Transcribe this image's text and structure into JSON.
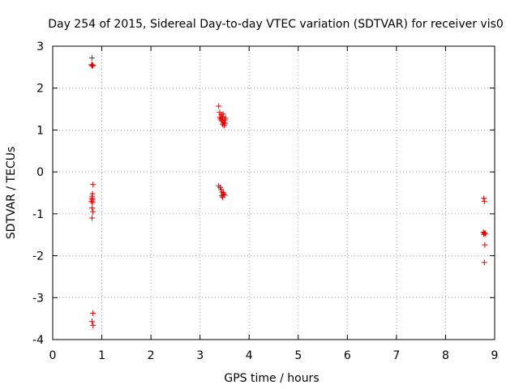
{
  "chart_data": {
    "type": "scatter",
    "title": "Day 254 of 2015, Sidereal Day-to-day VTEC variation (SDTVAR) for receiver vis0",
    "xlabel": "GPS time / hours",
    "ylabel": "SDTVAR / TECUs",
    "xlim": [
      0,
      9
    ],
    "ylim": [
      -4,
      3
    ],
    "xticks": [
      "0",
      "1",
      "2",
      "3",
      "4",
      "5",
      "6",
      "7",
      "8",
      "9"
    ],
    "yticks": [
      "3",
      "2",
      "1",
      "0",
      "-1",
      "-2",
      "-3",
      "-4"
    ],
    "marker": "+",
    "color": "#e00000",
    "grid": true,
    "points": [
      [
        0.8,
        2.72
      ],
      [
        0.79,
        2.56
      ],
      [
        0.8,
        2.54
      ],
      [
        0.81,
        2.53
      ],
      [
        0.82,
        2.55
      ],
      [
        0.82,
        -0.3
      ],
      [
        0.81,
        -0.52
      ],
      [
        0.8,
        -0.58
      ],
      [
        0.8,
        -0.63
      ],
      [
        0.81,
        -0.66
      ],
      [
        0.79,
        -0.7
      ],
      [
        0.81,
        -0.73
      ],
      [
        0.8,
        -0.86
      ],
      [
        0.82,
        -0.95
      ],
      [
        0.8,
        -1.1
      ],
      [
        0.82,
        -3.37
      ],
      [
        0.8,
        -3.57
      ],
      [
        0.82,
        -3.66
      ],
      [
        3.38,
        1.57
      ],
      [
        3.4,
        1.42
      ],
      [
        3.43,
        1.36
      ],
      [
        3.4,
        1.3
      ],
      [
        3.42,
        1.26
      ],
      [
        3.45,
        1.28
      ],
      [
        3.47,
        1.32
      ],
      [
        3.44,
        1.22
      ],
      [
        3.48,
        1.18
      ],
      [
        3.5,
        1.24
      ],
      [
        3.46,
        1.14
      ],
      [
        3.49,
        1.11
      ],
      [
        3.51,
        1.16
      ],
      [
        3.47,
        1.38
      ],
      [
        3.52,
        1.28
      ],
      [
        3.38,
        -0.33
      ],
      [
        3.41,
        -0.37
      ],
      [
        3.43,
        -0.42
      ],
      [
        3.45,
        -0.48
      ],
      [
        3.47,
        -0.53
      ],
      [
        3.5,
        -0.55
      ],
      [
        3.46,
        -0.6
      ],
      [
        3.48,
        -0.5
      ],
      [
        3.44,
        -0.57
      ],
      [
        8.78,
        -0.63
      ],
      [
        8.79,
        -0.7
      ],
      [
        8.77,
        -1.44
      ],
      [
        8.79,
        -1.46
      ],
      [
        8.81,
        -1.47
      ],
      [
        8.78,
        -1.49
      ],
      [
        8.8,
        -1.74
      ],
      [
        8.79,
        -2.16
      ]
    ]
  }
}
